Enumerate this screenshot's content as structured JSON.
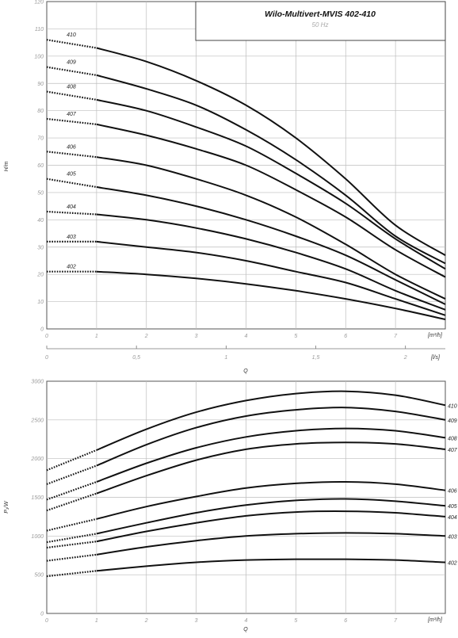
{
  "legend_box": {
    "title": "Wilo-Multivert-MVIS 402-410",
    "subtitle": "50 Hz"
  },
  "chart_data": [
    {
      "type": "line",
      "ylabel": "H/m",
      "xlabel": "Q",
      "x_unit": "[m³/h]",
      "x2_unit": "[l/s]",
      "xlim": [
        0,
        8
      ],
      "ylim": [
        0,
        120
      ],
      "xticks": [
        "0",
        "1",
        "2",
        "3",
        "4",
        "5",
        "6",
        "7"
      ],
      "yticks": [
        "0",
        "10",
        "20",
        "30",
        "40",
        "50",
        "60",
        "70",
        "80",
        "90",
        "100",
        "110",
        "120"
      ],
      "x2ticks": [
        {
          "label": "0",
          "q": 0
        },
        {
          "label": "0,5",
          "q": 1.8
        },
        {
          "label": "1",
          "q": 3.6
        },
        {
          "label": "1,5",
          "q": 5.4
        },
        {
          "label": "2",
          "q": 7.2
        }
      ],
      "grid": true,
      "dotted_until": 1,
      "series": [
        {
          "name": "410",
          "points": [
            [
              0,
              106
            ],
            [
              1,
              103
            ],
            [
              2,
              98
            ],
            [
              3,
              91
            ],
            [
              4,
              82
            ],
            [
              5,
              70
            ],
            [
              6,
              55
            ],
            [
              7,
              38
            ],
            [
              8,
              27
            ]
          ]
        },
        {
          "name": "409",
          "points": [
            [
              0,
              96
            ],
            [
              1,
              93
            ],
            [
              2,
              88
            ],
            [
              3,
              82
            ],
            [
              4,
              73
            ],
            [
              5,
              62
            ],
            [
              6,
              49
            ],
            [
              7,
              34
            ],
            [
              8,
              24
            ]
          ]
        },
        {
          "name": "408",
          "points": [
            [
              0,
              87
            ],
            [
              1,
              84
            ],
            [
              2,
              80
            ],
            [
              3,
              74
            ],
            [
              4,
              67
            ],
            [
              5,
              57
            ],
            [
              6,
              46
            ],
            [
              7,
              33
            ],
            [
              8,
              22
            ]
          ]
        },
        {
          "name": "407",
          "points": [
            [
              0,
              77
            ],
            [
              1,
              75
            ],
            [
              2,
              71
            ],
            [
              3,
              66
            ],
            [
              4,
              60
            ],
            [
              5,
              51
            ],
            [
              6,
              41
            ],
            [
              7,
              29
            ],
            [
              8,
              19
            ]
          ]
        },
        {
          "name": "406",
          "points": [
            [
              0,
              65
            ],
            [
              1,
              63
            ],
            [
              2,
              60
            ],
            [
              3,
              55
            ],
            [
              4,
              49
            ],
            [
              5,
              41
            ],
            [
              6,
              31
            ],
            [
              7,
              20
            ],
            [
              8,
              11
            ]
          ]
        },
        {
          "name": "405",
          "points": [
            [
              0,
              55
            ],
            [
              1,
              52
            ],
            [
              2,
              49
            ],
            [
              3,
              45
            ],
            [
              4,
              40
            ],
            [
              5,
              34
            ],
            [
              6,
              27
            ],
            [
              7,
              18
            ],
            [
              8,
              9
            ]
          ]
        },
        {
          "name": "404",
          "points": [
            [
              0,
              43
            ],
            [
              1,
              42
            ],
            [
              2,
              40
            ],
            [
              3,
              37
            ],
            [
              4,
              33
            ],
            [
              5,
              28
            ],
            [
              6,
              22
            ],
            [
              7,
              14
            ],
            [
              8,
              7
            ]
          ]
        },
        {
          "name": "403",
          "points": [
            [
              0,
              32
            ],
            [
              1,
              32
            ],
            [
              2,
              30
            ],
            [
              3,
              28
            ],
            [
              4,
              25
            ],
            [
              5,
              21
            ],
            [
              6,
              17
            ],
            [
              7,
              11
            ],
            [
              8,
              5
            ]
          ]
        },
        {
          "name": "402",
          "points": [
            [
              0,
              21
            ],
            [
              1,
              21
            ],
            [
              2,
              20
            ],
            [
              3,
              18.5
            ],
            [
              4,
              16.5
            ],
            [
              5,
              14
            ],
            [
              6,
              11
            ],
            [
              7,
              7.5
            ],
            [
              8,
              3.5
            ]
          ]
        }
      ]
    },
    {
      "type": "line",
      "ylabel": "P₁/W",
      "xlabel": "Q",
      "x_unit": "[m³/h]",
      "xlim": [
        0,
        8
      ],
      "ylim": [
        0,
        3000
      ],
      "xticks": [
        "0",
        "1",
        "2",
        "3",
        "4",
        "5",
        "6",
        "7"
      ],
      "yticks": [
        "0",
        "500",
        "1000",
        "1500",
        "2000",
        "2500",
        "3000"
      ],
      "grid": true,
      "dotted_until": 1,
      "series": [
        {
          "name": "410",
          "points": [
            [
              0,
              1850
            ],
            [
              1,
              2110
            ],
            [
              2,
              2380
            ],
            [
              3,
              2600
            ],
            [
              4,
              2750
            ],
            [
              5,
              2840
            ],
            [
              6,
              2870
            ],
            [
              7,
              2820
            ],
            [
              8,
              2690
            ]
          ]
        },
        {
          "name": "409",
          "points": [
            [
              0,
              1670
            ],
            [
              1,
              1910
            ],
            [
              2,
              2180
            ],
            [
              3,
              2400
            ],
            [
              4,
              2550
            ],
            [
              5,
              2630
            ],
            [
              6,
              2660
            ],
            [
              7,
              2610
            ],
            [
              8,
              2500
            ]
          ]
        },
        {
          "name": "408",
          "points": [
            [
              0,
              1470
            ],
            [
              1,
              1700
            ],
            [
              2,
              1940
            ],
            [
              3,
              2140
            ],
            [
              4,
              2280
            ],
            [
              5,
              2360
            ],
            [
              6,
              2390
            ],
            [
              7,
              2360
            ],
            [
              8,
              2270
            ]
          ]
        },
        {
          "name": "407",
          "points": [
            [
              0,
              1330
            ],
            [
              1,
              1550
            ],
            [
              2,
              1780
            ],
            [
              3,
              1980
            ],
            [
              4,
              2120
            ],
            [
              5,
              2190
            ],
            [
              6,
              2210
            ],
            [
              7,
              2190
            ],
            [
              8,
              2120
            ]
          ]
        },
        {
          "name": "406",
          "points": [
            [
              0,
              1070
            ],
            [
              1,
              1220
            ],
            [
              2,
              1380
            ],
            [
              3,
              1510
            ],
            [
              4,
              1620
            ],
            [
              5,
              1680
            ],
            [
              6,
              1700
            ],
            [
              7,
              1670
            ],
            [
              8,
              1590
            ]
          ]
        },
        {
          "name": "405",
          "points": [
            [
              0,
              920
            ],
            [
              1,
              1030
            ],
            [
              2,
              1170
            ],
            [
              3,
              1300
            ],
            [
              4,
              1400
            ],
            [
              5,
              1460
            ],
            [
              6,
              1480
            ],
            [
              7,
              1450
            ],
            [
              8,
              1390
            ]
          ]
        },
        {
          "name": "404",
          "points": [
            [
              0,
              850
            ],
            [
              1,
              930
            ],
            [
              2,
              1060
            ],
            [
              3,
              1170
            ],
            [
              4,
              1260
            ],
            [
              5,
              1310
            ],
            [
              6,
              1320
            ],
            [
              7,
              1300
            ],
            [
              8,
              1250
            ]
          ]
        },
        {
          "name": "403",
          "points": [
            [
              0,
              680
            ],
            [
              1,
              760
            ],
            [
              2,
              860
            ],
            [
              3,
              940
            ],
            [
              4,
              1000
            ],
            [
              5,
              1030
            ],
            [
              6,
              1040
            ],
            [
              7,
              1030
            ],
            [
              8,
              1000
            ]
          ]
        },
        {
          "name": "402",
          "points": [
            [
              0,
              480
            ],
            [
              1,
              550
            ],
            [
              2,
              610
            ],
            [
              3,
              660
            ],
            [
              4,
              690
            ],
            [
              5,
              700
            ],
            [
              6,
              700
            ],
            [
              7,
              690
            ],
            [
              8,
              660
            ]
          ]
        }
      ]
    }
  ]
}
